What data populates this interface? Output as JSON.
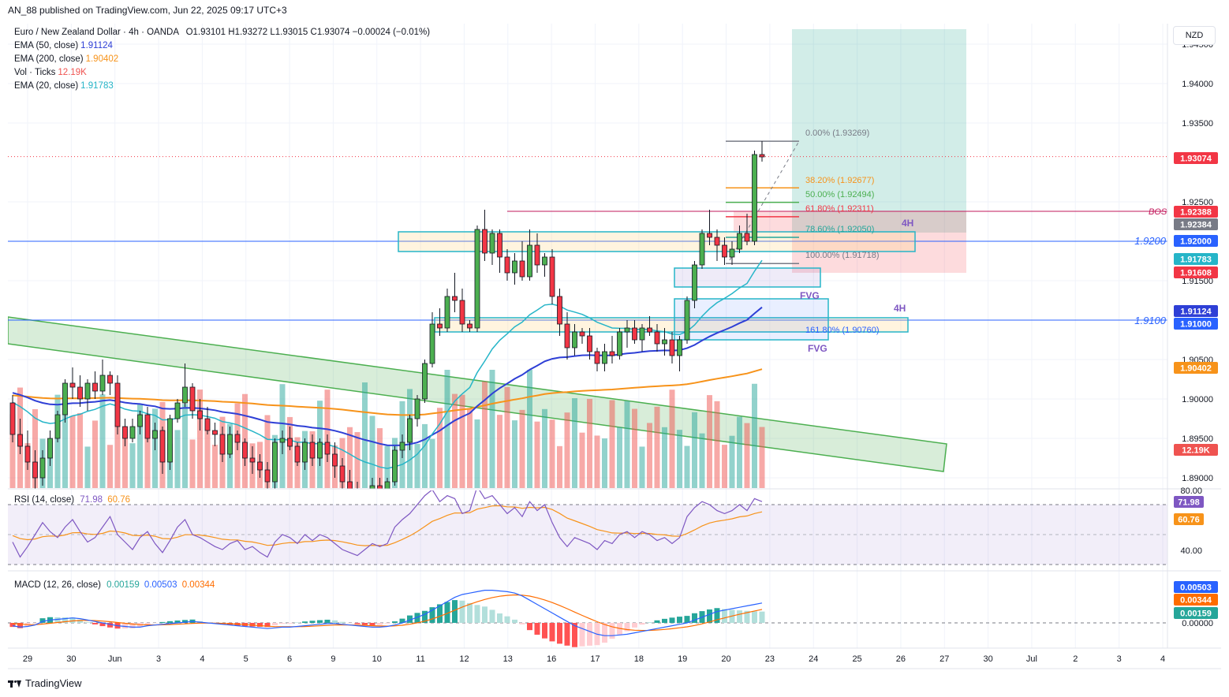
{
  "header": {
    "published": "AN_88 published on TradingView.com, Jun 22, 2025 09:17 UTC+3"
  },
  "symbol": {
    "name": "Euro / New Zealand Dollar · 4h · OANDA",
    "o": "O1.93101",
    "h": "H1.93272",
    "l": "L1.93015",
    "c": "C1.93074",
    "chg": "−0.00024 (−0.01%)"
  },
  "indicators": [
    {
      "label": "EMA (50, close)",
      "value": "1.91124",
      "color": "#2e3fd6"
    },
    {
      "label": "EMA (200, close)",
      "value": "1.90402",
      "color": "#f7931a"
    },
    {
      "label": "Vol · Ticks",
      "value": "12.19K",
      "color": "#ef5350"
    },
    {
      "label": "EMA (20, close)",
      "value": "1.91783",
      "color": "#26b5c8"
    }
  ],
  "currency_button": "NZD",
  "rsi": {
    "label": "RSI (14, close)",
    "value": "71.98",
    "ma": "60.76"
  },
  "macd": {
    "label": "MACD (12, 26, close)",
    "hist": "0.00159",
    "macd": "0.00503",
    "signal": "0.00344"
  },
  "footer": {
    "brand": "TradingView"
  },
  "chart_data": {
    "type": "candlestick",
    "title": "Euro / New Zealand Dollar · 4h · OANDA",
    "ylim": [
      1.8885,
      1.9445
    ],
    "price_ticks": [
      "1.89000",
      "1.89500",
      "1.90000",
      "1.90500",
      "1.91500",
      "1.92500",
      "1.93500",
      "1.94000",
      "1.94500"
    ],
    "rsi_ticks": [
      "80.00",
      "40.00"
    ],
    "macd_ticks": [
      "0.00000"
    ],
    "x_ticks": [
      "29",
      "30",
      "Jun",
      "3",
      "4",
      "5",
      "6",
      "9",
      "10",
      "11",
      "12",
      "13",
      "16",
      "17",
      "18",
      "19",
      "20",
      "23",
      "24",
      "25",
      "26",
      "27",
      "30",
      "Jul",
      "2",
      "3",
      "4"
    ],
    "price_labels": [
      {
        "text": "1.93074",
        "price": 1.93074,
        "color": "#f23645"
      },
      {
        "text": "1.92388",
        "price": 1.92388,
        "color": "#f23645"
      },
      {
        "text": "1.92384",
        "price": 1.92384,
        "color": "#787b86"
      },
      {
        "text": "1.92000",
        "price": 1.92,
        "color": "#2962ff"
      },
      {
        "text": "1.91783",
        "price": 1.91783,
        "color": "#26b5c8"
      },
      {
        "text": "1.91608",
        "price": 1.91608,
        "color": "#f23645"
      },
      {
        "text": "1.91124",
        "price": 1.91124,
        "color": "#2e3fd6"
      },
      {
        "text": "1.91000",
        "price": 1.91,
        "color": "#2962ff"
      },
      {
        "text": "1.90402",
        "price": 1.90402,
        "color": "#f7931a"
      }
    ],
    "rsi_labels": [
      {
        "text": "71.98",
        "color": "#7e57c2"
      },
      {
        "text": "60.76",
        "color": "#f7931a"
      }
    ],
    "macd_labels": [
      {
        "text": "0.00503",
        "color": "#2962ff"
      },
      {
        "text": "0.00344",
        "color": "#ff6d00"
      },
      {
        "text": "0.00159",
        "color": "#26a69a"
      }
    ],
    "volume_label": "12.19K",
    "annotations": {
      "bos": "BOS",
      "level_1_92": "1.9200",
      "level_1_91": "1.9100",
      "tf_label": "4H",
      "fvg": "FVG",
      "fib": [
        {
          "text": "0.00% (1.93269)",
          "price": 1.93269,
          "color": "#787b86"
        },
        {
          "text": "38.20% (1.92677)",
          "price": 1.92677,
          "color": "#f7931a"
        },
        {
          "text": "50.00% (1.92494)",
          "price": 1.92494,
          "color": "#4caf50"
        },
        {
          "text": "61.80% (1.92311)",
          "price": 1.92311,
          "color": "#f23645"
        },
        {
          "text": "78.60% (1.92050)",
          "price": 1.9205,
          "color": "#26a69a"
        },
        {
          "text": "100.00% (1.91718)",
          "price": 1.91718,
          "color": "#787b86"
        },
        {
          "text": "161.80% (1.90760)",
          "price": 1.9076,
          "color": "#2962ff"
        }
      ]
    },
    "candles_ohlc": [
      [
        1.8995,
        1.9005,
        1.8945,
        1.8955
      ],
      [
        1.8955,
        1.8975,
        1.893,
        1.894
      ],
      [
        1.894,
        1.896,
        1.891,
        1.892
      ],
      [
        1.892,
        1.8935,
        1.8885,
        1.89
      ],
      [
        1.89,
        1.8935,
        1.889,
        1.8925
      ],
      [
        1.8925,
        1.896,
        1.8915,
        1.895
      ],
      [
        1.895,
        1.8985,
        1.8945,
        1.898
      ],
      [
        1.898,
        1.9025,
        1.897,
        1.902
      ],
      [
        1.902,
        1.904,
        1.9,
        1.9015
      ],
      [
        1.9015,
        1.903,
        1.899,
        1.9
      ],
      [
        1.9,
        1.9025,
        1.8985,
        1.902
      ],
      [
        1.902,
        1.9035,
        1.9,
        1.901
      ],
      [
        1.901,
        1.905,
        1.9005,
        1.903
      ],
      [
        1.903,
        1.9035,
        1.9005,
        1.902
      ],
      [
        1.902,
        1.903,
        1.8955,
        1.8965
      ],
      [
        1.8965,
        1.8975,
        1.894,
        1.895
      ],
      [
        1.895,
        1.8975,
        1.8945,
        1.8965
      ],
      [
        1.8965,
        1.8985,
        1.8955,
        1.898
      ],
      [
        1.898,
        1.899,
        1.8945,
        1.895
      ],
      [
        1.895,
        1.897,
        1.8935,
        1.896
      ],
      [
        1.896,
        1.8965,
        1.8905,
        1.892
      ],
      [
        1.892,
        1.898,
        1.891,
        1.8975
      ],
      [
        1.8975,
        1.9,
        1.897,
        1.8995
      ],
      [
        1.8995,
        1.9045,
        1.899,
        1.9015
      ],
      [
        1.9015,
        1.902,
        1.8975,
        1.8985
      ],
      [
        1.8985,
        1.9,
        1.896,
        1.8975
      ],
      [
        1.8975,
        1.899,
        1.8955,
        1.896
      ],
      [
        1.896,
        1.897,
        1.894,
        1.8955
      ],
      [
        1.8955,
        1.8965,
        1.892,
        1.893
      ],
      [
        1.893,
        1.8965,
        1.8925,
        1.8955
      ],
      [
        1.8955,
        1.896,
        1.8935,
        1.8945
      ],
      [
        1.8945,
        1.895,
        1.8915,
        1.8925
      ],
      [
        1.8925,
        1.894,
        1.8905,
        1.892
      ],
      [
        1.892,
        1.893,
        1.89,
        1.891
      ],
      [
        1.891,
        1.892,
        1.8885,
        1.8895
      ],
      [
        1.8895,
        1.895,
        1.8885,
        1.8945
      ],
      [
        1.8945,
        1.896,
        1.893,
        1.895
      ],
      [
        1.895,
        1.8965,
        1.8935,
        1.894
      ],
      [
        1.894,
        1.8945,
        1.8915,
        1.892
      ],
      [
        1.892,
        1.895,
        1.891,
        1.8945
      ],
      [
        1.8945,
        1.8955,
        1.8915,
        1.8925
      ],
      [
        1.8925,
        1.895,
        1.8915,
        1.8945
      ],
      [
        1.8945,
        1.8955,
        1.892,
        1.893
      ],
      [
        1.893,
        1.8945,
        1.89,
        1.8915
      ],
      [
        1.8915,
        1.8925,
        1.8885,
        1.8895
      ],
      [
        1.8895,
        1.891,
        1.887,
        1.888
      ],
      [
        1.888,
        1.8895,
        1.886,
        1.887
      ],
      [
        1.887,
        1.8885,
        1.886,
        1.888
      ],
      [
        1.888,
        1.89,
        1.887,
        1.889
      ],
      [
        1.889,
        1.89,
        1.887,
        1.888
      ],
      [
        1.888,
        1.89,
        1.887,
        1.8895
      ],
      [
        1.8895,
        1.894,
        1.889,
        1.8935
      ],
      [
        1.8935,
        1.8955,
        1.8925,
        1.8945
      ],
      [
        1.8945,
        1.898,
        1.8935,
        1.8975
      ],
      [
        1.8975,
        1.9005,
        1.8965,
        1.9
      ],
      [
        1.9,
        1.905,
        1.8995,
        1.9045
      ],
      [
        1.9045,
        1.911,
        1.904,
        1.9095
      ],
      [
        1.9095,
        1.9115,
        1.908,
        1.909
      ],
      [
        1.909,
        1.914,
        1.9085,
        1.913
      ],
      [
        1.913,
        1.916,
        1.911,
        1.9125
      ],
      [
        1.9125,
        1.914,
        1.9085,
        1.9095
      ],
      [
        1.9095,
        1.91,
        1.9085,
        1.909
      ],
      [
        1.909,
        1.922,
        1.9085,
        1.9215
      ],
      [
        1.9215,
        1.924,
        1.9175,
        1.9185
      ],
      [
        1.9185,
        1.9215,
        1.917,
        1.921
      ],
      [
        1.921,
        1.9215,
        1.916,
        1.918
      ],
      [
        1.918,
        1.919,
        1.915,
        1.916
      ],
      [
        1.916,
        1.9185,
        1.9145,
        1.9175
      ],
      [
        1.9175,
        1.92,
        1.915,
        1.9155
      ],
      [
        1.9155,
        1.9215,
        1.915,
        1.9195
      ],
      [
        1.9195,
        1.921,
        1.916,
        1.917
      ],
      [
        1.917,
        1.9185,
        1.9155,
        1.918
      ],
      [
        1.918,
        1.919,
        1.912,
        1.913
      ],
      [
        1.913,
        1.914,
        1.908,
        1.9095
      ],
      [
        1.9095,
        1.911,
        1.905,
        1.9065
      ],
      [
        1.9065,
        1.9095,
        1.9055,
        1.9085
      ],
      [
        1.9085,
        1.909,
        1.907,
        1.908
      ],
      [
        1.908,
        1.909,
        1.905,
        1.906
      ],
      [
        1.906,
        1.9065,
        1.9035,
        1.9045
      ],
      [
        1.9045,
        1.907,
        1.9035,
        1.906
      ],
      [
        1.906,
        1.908,
        1.9045,
        1.9055
      ],
      [
        1.9055,
        1.909,
        1.905,
        1.9085
      ],
      [
        1.9085,
        1.91,
        1.9065,
        1.909
      ],
      [
        1.909,
        1.91,
        1.907,
        1.9075
      ],
      [
        1.9075,
        1.9095,
        1.906,
        1.909
      ],
      [
        1.909,
        1.9105,
        1.908,
        1.9085
      ],
      [
        1.9085,
        1.9095,
        1.906,
        1.907
      ],
      [
        1.907,
        1.909,
        1.9055,
        1.9075
      ],
      [
        1.9075,
        1.9085,
        1.9045,
        1.9055
      ],
      [
        1.9055,
        1.908,
        1.9035,
        1.9075
      ],
      [
        1.9075,
        1.913,
        1.907,
        1.9125
      ],
      [
        1.9125,
        1.9175,
        1.9115,
        1.917
      ],
      [
        1.917,
        1.9215,
        1.9165,
        1.921
      ],
      [
        1.921,
        1.924,
        1.9195,
        1.9205
      ],
      [
        1.9205,
        1.9215,
        1.9175,
        1.9195
      ],
      [
        1.9195,
        1.9205,
        1.917,
        1.918
      ],
      [
        1.918,
        1.92,
        1.917,
        1.919
      ],
      [
        1.919,
        1.922,
        1.9185,
        1.921
      ],
      [
        1.921,
        1.9235,
        1.9195,
        1.92
      ],
      [
        1.92,
        1.9315,
        1.9195,
        1.931
      ],
      [
        1.931,
        1.9327,
        1.9301,
        1.9307
      ]
    ]
  }
}
